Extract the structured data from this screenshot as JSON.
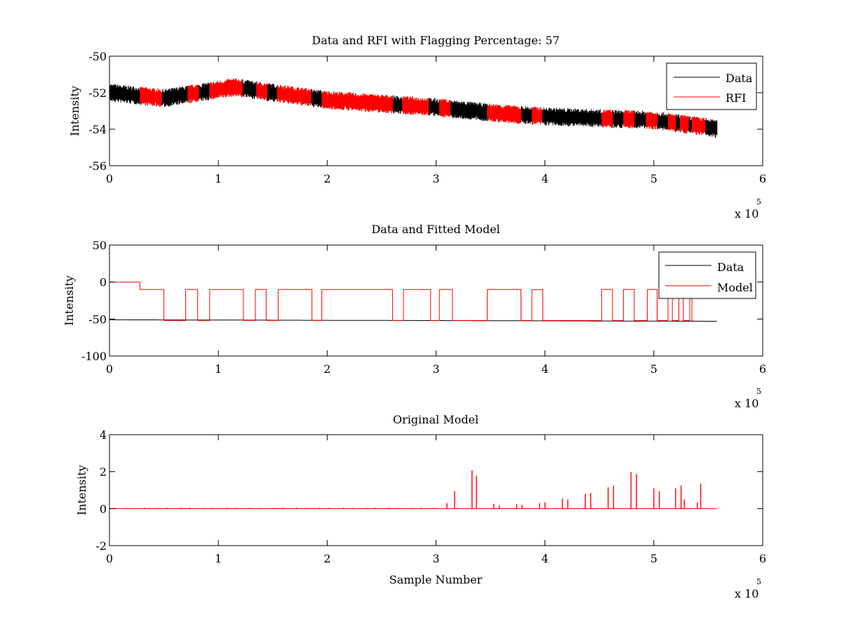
{
  "figure_background": "#ffffff",
  "colors": {
    "data": "#000000",
    "rfi": "#ff0000",
    "model": "#ff0000"
  },
  "chart_data": [
    {
      "type": "line",
      "title": "Data and RFI with Flagging Percentage: 57",
      "xlabel": "",
      "ylabel": "Intensity",
      "xlim": [
        0,
        6
      ],
      "ylim": [
        -56,
        -50
      ],
      "x_ticks": [
        "0",
        "1",
        "2",
        "3",
        "4",
        "5",
        "6"
      ],
      "y_ticks": [
        "-50",
        "-52",
        "-54",
        "-56"
      ],
      "x_exponent_label": "x 10",
      "x_exponent_power": "5",
      "legend": {
        "position": "top-right",
        "entries": [
          "Data",
          "RFI"
        ]
      },
      "series": [
        {
          "name": "Data",
          "color": "#000000",
          "noise_band": 0.5,
          "x": [
            0,
            0.5,
            1.15,
            1.5,
            2.0,
            2.5,
            3.0,
            3.5,
            4.0,
            4.5,
            5.0,
            5.5,
            5.58
          ],
          "y": [
            -52.0,
            -52.3,
            -51.7,
            -52.0,
            -52.4,
            -52.6,
            -52.8,
            -53.1,
            -53.3,
            -53.4,
            -53.5,
            -53.9,
            -54.0
          ]
        },
        {
          "name": "RFI",
          "color": "#ff0000",
          "segments": [
            [
              0.28,
              0.48
            ],
            [
              0.72,
              0.82
            ],
            [
              0.92,
              1.22
            ],
            [
              1.35,
              1.45
            ],
            [
              1.54,
              1.85
            ],
            [
              1.95,
              2.6
            ],
            [
              2.69,
              2.93
            ],
            [
              3.03,
              3.13
            ],
            [
              3.47,
              3.78
            ],
            [
              3.88,
              3.97
            ],
            [
              4.52,
              4.62
            ],
            [
              4.72,
              4.82
            ],
            [
              4.93,
              5.03
            ],
            [
              5.13,
              5.2
            ],
            [
              5.24,
              5.32
            ],
            [
              5.35,
              5.47
            ]
          ]
        }
      ]
    },
    {
      "type": "line",
      "title": "Data and Fitted Model",
      "xlabel": "",
      "ylabel": "Intensity",
      "xlim": [
        0,
        6
      ],
      "ylim": [
        -100,
        50
      ],
      "x_ticks": [
        "0",
        "1",
        "2",
        "3",
        "4",
        "5",
        "6"
      ],
      "y_ticks": [
        "50",
        "0",
        "-50",
        "-100"
      ],
      "x_exponent_label": "x 10",
      "x_exponent_power": "5",
      "legend": {
        "position": "top-right",
        "entries": [
          "Data",
          "Model"
        ]
      },
      "series": [
        {
          "name": "Data",
          "color": "#000000",
          "x": [
            0,
            5.58
          ],
          "y": [
            -51,
            -53
          ]
        },
        {
          "name": "Model",
          "color": "#ff0000",
          "steps": [
            [
              0,
              0
            ],
            [
              0.28,
              -10
            ],
            [
              0.5,
              -52
            ],
            [
              0.7,
              -10
            ],
            [
              0.81,
              -52
            ],
            [
              0.92,
              -10
            ],
            [
              1.23,
              -52
            ],
            [
              1.34,
              -10
            ],
            [
              1.44,
              -52
            ],
            [
              1.55,
              -10
            ],
            [
              1.86,
              -52
            ],
            [
              1.95,
              -10
            ],
            [
              2.6,
              -52
            ],
            [
              2.7,
              -10
            ],
            [
              2.95,
              -52
            ],
            [
              3.03,
              -10
            ],
            [
              3.15,
              -52
            ],
            [
              3.47,
              -10
            ],
            [
              3.78,
              -52
            ],
            [
              3.88,
              -10
            ],
            [
              3.98,
              -52
            ],
            [
              4.52,
              -10
            ],
            [
              4.62,
              -52
            ],
            [
              4.72,
              -10
            ],
            [
              4.82,
              -52
            ],
            [
              4.94,
              -10
            ],
            [
              5.03,
              -52
            ],
            [
              5.13,
              -10
            ],
            [
              5.17,
              -52
            ],
            [
              5.23,
              -10
            ],
            [
              5.27,
              -52
            ],
            [
              5.33,
              -10
            ],
            [
              5.35,
              -52
            ],
            [
              5.36,
              -52
            ]
          ]
        }
      ]
    },
    {
      "type": "line",
      "title": "Original Model",
      "xlabel": "Sample Number",
      "ylabel": "Intensity",
      "xlim": [
        0,
        6
      ],
      "ylim": [
        -2,
        4
      ],
      "x_ticks": [
        "0",
        "1",
        "2",
        "3",
        "4",
        "5",
        "6"
      ],
      "y_ticks": [
        "4",
        "2",
        "0",
        "-2"
      ],
      "x_exponent_label": "x 10",
      "x_exponent_power": "5",
      "series": [
        {
          "name": "",
          "color": "#ff0000",
          "x_range": [
            0,
            5.58
          ],
          "peaks": [
            [
              0.05,
              0.05
            ],
            [
              0.32,
              0.05
            ],
            [
              0.45,
              0.04
            ],
            [
              0.53,
              0.05
            ],
            [
              0.66,
              0.05
            ],
            [
              0.74,
              0.05
            ],
            [
              0.87,
              0.05
            ],
            [
              0.95,
              0.04
            ],
            [
              1.08,
              0.05
            ],
            [
              1.16,
              0.05
            ],
            [
              1.29,
              0.05
            ],
            [
              1.38,
              0.04
            ],
            [
              1.51,
              0.05
            ],
            [
              1.59,
              0.05
            ],
            [
              1.72,
              0.05
            ],
            [
              1.8,
              0.04
            ],
            [
              1.93,
              0.05
            ],
            [
              2.02,
              0.05
            ],
            [
              2.15,
              0.05
            ],
            [
              2.23,
              0.04
            ],
            [
              2.36,
              0.05
            ],
            [
              2.44,
              0.05
            ],
            [
              2.57,
              0.05
            ],
            [
              2.65,
              0.04
            ],
            [
              2.78,
              0.05
            ],
            [
              2.86,
              0.05
            ],
            [
              2.98,
              0.05
            ],
            [
              3.1,
              0.3
            ],
            [
              3.17,
              0.95
            ],
            [
              3.33,
              2.08
            ],
            [
              3.37,
              1.78
            ],
            [
              3.53,
              0.25
            ],
            [
              3.58,
              0.18
            ],
            [
              3.74,
              0.25
            ],
            [
              3.79,
              0.2
            ],
            [
              3.95,
              0.3
            ],
            [
              4.0,
              0.35
            ],
            [
              4.16,
              0.55
            ],
            [
              4.21,
              0.5
            ],
            [
              4.37,
              0.8
            ],
            [
              4.42,
              0.85
            ],
            [
              4.58,
              1.15
            ],
            [
              4.63,
              1.25
            ],
            [
              4.79,
              1.98
            ],
            [
              4.84,
              1.88
            ],
            [
              5.0,
              1.1
            ],
            [
              5.05,
              0.95
            ],
            [
              5.2,
              1.1
            ],
            [
              5.25,
              1.25
            ],
            [
              5.28,
              0.5
            ],
            [
              5.4,
              0.35
            ],
            [
              5.43,
              1.35
            ]
          ]
        }
      ]
    }
  ]
}
